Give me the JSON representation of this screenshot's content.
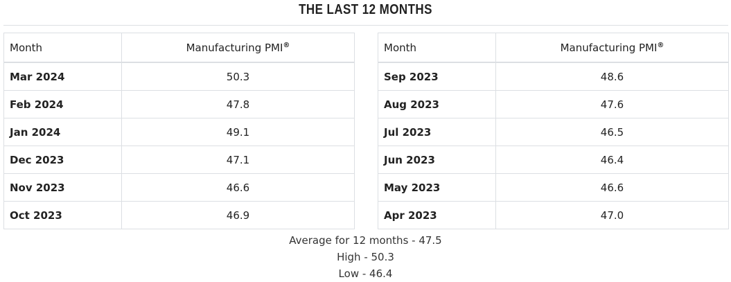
{
  "title": "THE LAST 12 MONTHS",
  "columns": {
    "month": "Month",
    "pmi": "Manufacturing PMI",
    "pmi_mark": "®"
  },
  "left_rows": [
    {
      "month": "Mar 2024",
      "value": "50.3"
    },
    {
      "month": "Feb 2024",
      "value": "47.8"
    },
    {
      "month": "Jan 2024",
      "value": "49.1"
    },
    {
      "month": "Dec 2023",
      "value": "47.1"
    },
    {
      "month": "Nov 2023",
      "value": "46.6"
    },
    {
      "month": "Oct 2023",
      "value": "46.9"
    }
  ],
  "right_rows": [
    {
      "month": "Sep 2023",
      "value": "48.6"
    },
    {
      "month": "Aug 2023",
      "value": "47.6"
    },
    {
      "month": "Jul 2023",
      "value": "46.5"
    },
    {
      "month": "Jun 2023",
      "value": "46.4"
    },
    {
      "month": "May 2023",
      "value": "46.6"
    },
    {
      "month": "Apr 2023",
      "value": "47.0"
    }
  ],
  "summary": {
    "average": "Average for 12 months - 47.5",
    "high": "High - 50.3",
    "low": "Low - 46.4"
  }
}
